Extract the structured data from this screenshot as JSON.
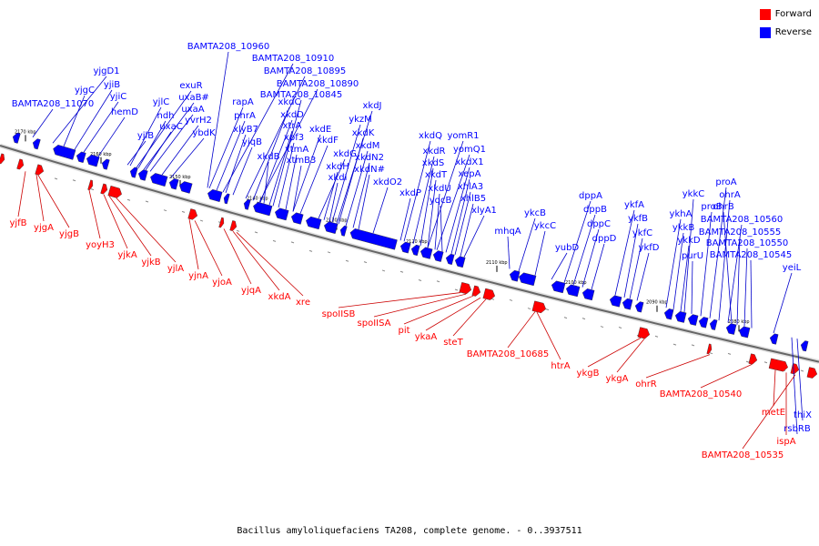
{
  "title": "Bacillus amyloliquefaciens TA208, complete genome. - 0..3937511",
  "legend": [
    {
      "label": "Forward",
      "color": "#ff0000"
    },
    {
      "label": "Reverse",
      "color": "#0000ff"
    }
  ],
  "colors": {
    "forward": "#ff0000",
    "reverse": "#0000ff",
    "forward_line": "#cc0000",
    "reverse_line": "#0000cc"
  },
  "ticks": [
    "2170 kbp",
    "2160 kbp",
    "2150 kbp",
    "2140 kbp",
    "2130 kbp",
    "2120 kbp",
    "2110 kbp",
    "2100 kbp",
    "2090 kbp",
    "2080 kbp"
  ],
  "reverse_labels": [
    "BAMTA208_10960",
    "BAMTA208_10910",
    "BAMTA208_10895",
    "BAMTA208_10890",
    "BAMTA208_10845",
    "BAMTA208_11070",
    "yjgD1",
    "yjgC",
    "yjiB",
    "yjiC",
    "hemD",
    "exuR",
    "uxaB#",
    "uxaA",
    "yjlC",
    "ndh",
    "uxaC",
    "yvrH2",
    "ybdK",
    "yjlB",
    "rapA",
    "phrA",
    "xlyB7",
    "yjqB",
    "xkdC",
    "xkdD",
    "xtrA",
    "xpf3",
    "xkdE",
    "xkdF",
    "xtmA",
    "xtmB3",
    "xkdB",
    "xkdJ",
    "ykzM",
    "xkdK",
    "xkdG",
    "xkdM",
    "xkdN2",
    "xkdH",
    "xkdN#",
    "xkdI",
    "xkdO2",
    "xkdP",
    "xkdQ",
    "xkdR",
    "xkdS",
    "xkdT",
    "xkdU",
    "yqcB",
    "yomR1",
    "yomQ1",
    "xkdX1",
    "xepA",
    "xhlA3",
    "xhlB5",
    "xlyA1",
    "mhqA",
    "ykcB",
    "ykcC",
    "yubD",
    "dppA",
    "dppB",
    "dppC",
    "dppD",
    "ykfA",
    "ykfB",
    "ykfC",
    "ykfD",
    "ykhA",
    "ykkB",
    "ykkD",
    "ykkC",
    "purU",
    "proA",
    "proB",
    "ohrA",
    "ohrB",
    "BAMTA208_10560",
    "BAMTA208_10555",
    "BAMTA208_10550",
    "BAMTA208_10545",
    "yeiL",
    "thiX",
    "rsbRB"
  ],
  "forward_labels": [
    "yjfB",
    "yjgA",
    "yjgB",
    "yoyH3",
    "yjkA",
    "yjkB",
    "yjlA",
    "yjnA",
    "yjoA",
    "yjqA",
    "xkdA",
    "xre",
    "spoIISB",
    "spoIISA",
    "pit",
    "ykaA",
    "steT",
    "BAMTA208_10685",
    "htrA",
    "ykgB",
    "ykgA",
    "ohrR",
    "BAMTA208_10540",
    "metE",
    "ispA",
    "BAMTA208_10535"
  ]
}
